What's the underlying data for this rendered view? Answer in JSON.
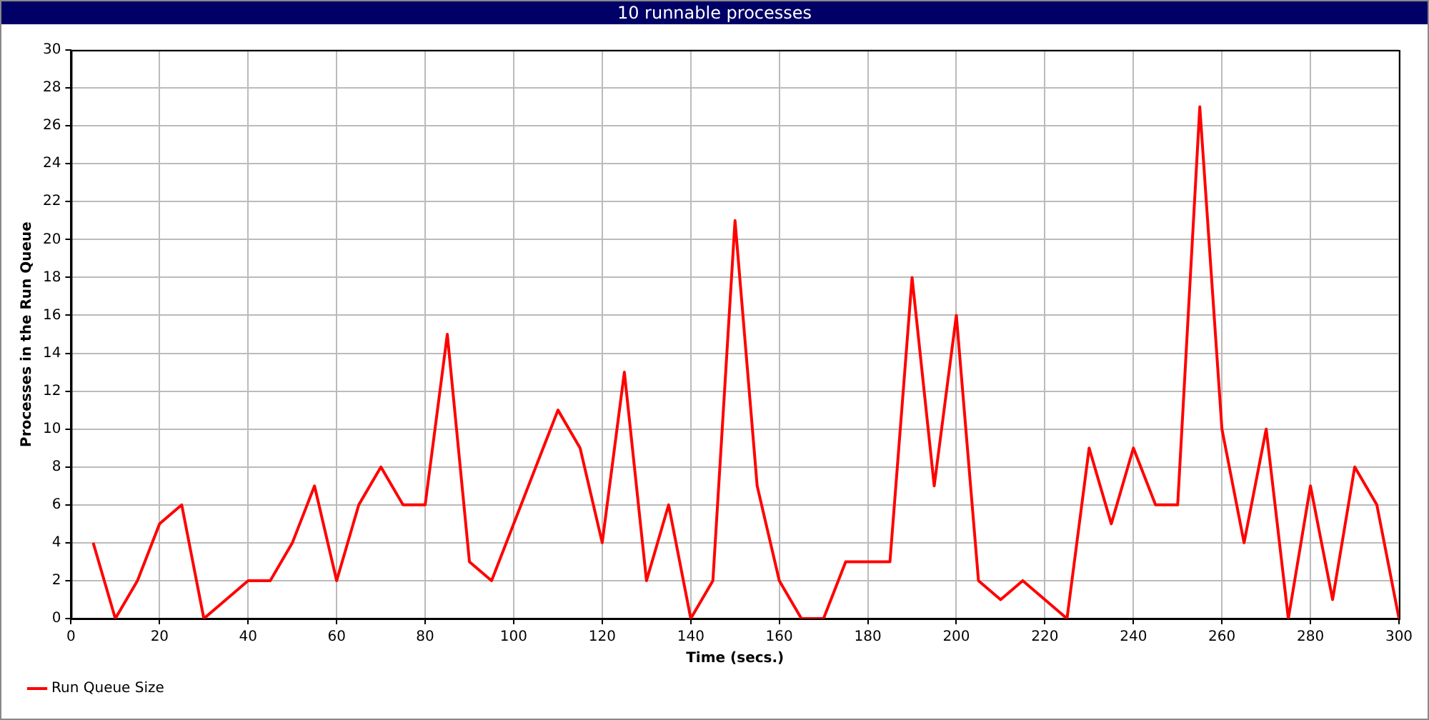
{
  "chart_data": {
    "type": "line",
    "title": "10 runnable processes",
    "xlabel": "Time (secs.)",
    "ylabel": "Processes in the Run Queue",
    "series": [
      {
        "name": "Run Queue Size",
        "color": "#ff0000",
        "x": [
          5,
          10,
          15,
          20,
          25,
          30,
          40,
          45,
          50,
          55,
          60,
          65,
          70,
          75,
          80,
          85,
          90,
          95,
          110,
          115,
          120,
          125,
          130,
          135,
          140,
          145,
          150,
          155,
          160,
          165,
          170,
          175,
          180,
          185,
          190,
          195,
          200,
          205,
          210,
          215,
          225,
          230,
          235,
          240,
          245,
          250,
          255,
          260,
          265,
          270,
          275,
          280,
          285,
          290,
          295,
          300
        ],
        "values": [
          4,
          0,
          2,
          5,
          6,
          0,
          2,
          2,
          4,
          7,
          2,
          6,
          8,
          6,
          6,
          15,
          3,
          2,
          11,
          9,
          4,
          13,
          2,
          6,
          0,
          2,
          21,
          7,
          2,
          0,
          0,
          3,
          3,
          3,
          18,
          7,
          16,
          2,
          1,
          2,
          0,
          9,
          5,
          9,
          6,
          6,
          27,
          10,
          4,
          10,
          0,
          7,
          1,
          8,
          6,
          0
        ]
      }
    ],
    "xlim": [
      0,
      300
    ],
    "xticks": [
      0,
      20,
      40,
      60,
      80,
      100,
      120,
      140,
      160,
      180,
      200,
      220,
      240,
      260,
      280,
      300
    ],
    "ylim": [
      0,
      30
    ],
    "yticks": [
      0,
      2,
      4,
      6,
      8,
      10,
      12,
      14,
      16,
      18,
      20,
      22,
      24,
      26,
      28,
      30
    ],
    "grid": true,
    "legend": "bottom left",
    "marker": "none",
    "line_style": "solid"
  }
}
